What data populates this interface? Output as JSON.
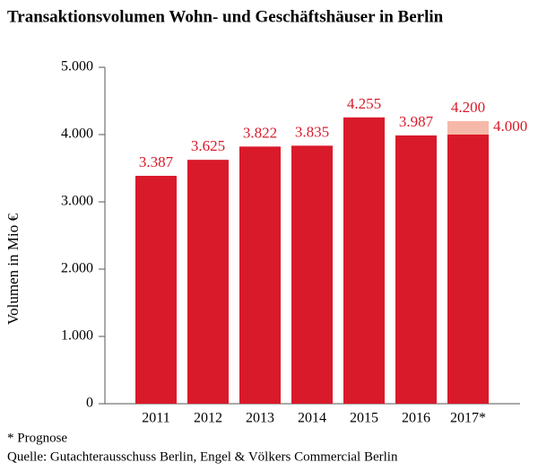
{
  "chart_data": {
    "type": "bar",
    "title": "Transaktionsvolumen Wohn- und Geschäftshäuser in Berlin",
    "ylabel": "Volumen in Mio €",
    "categories": [
      "2011",
      "2012",
      "2013",
      "2014",
      "2015",
      "2016",
      "2017*"
    ],
    "values": [
      3387,
      3625,
      3822,
      3835,
      4255,
      3987,
      4000
    ],
    "value_labels": [
      "3.387",
      "3.625",
      "3.822",
      "3.835",
      "4.255",
      "3.987",
      "4.000"
    ],
    "range_high": [
      null,
      null,
      null,
      null,
      null,
      null,
      4200
    ],
    "range_high_labels": [
      null,
      null,
      null,
      null,
      null,
      null,
      "4.200"
    ],
    "color": "#d91a2a",
    "range_color": "#f6b9a9",
    "ylim": [
      0,
      5000
    ],
    "yticks": [
      0,
      {
        "value": 1000,
        "label": "1.000"
      },
      {
        "value": 2000,
        "label": "2.000"
      },
      {
        "value": 3000,
        "label": "3.000"
      },
      {
        "value": 4000,
        "label": "4.000"
      },
      {
        "value": 5000,
        "label": "5.000"
      }
    ],
    "footnote": "* Prognose",
    "source": "Quelle: Gutachterausschuss Berlin, Engel & Völkers Commercial Berlin"
  }
}
